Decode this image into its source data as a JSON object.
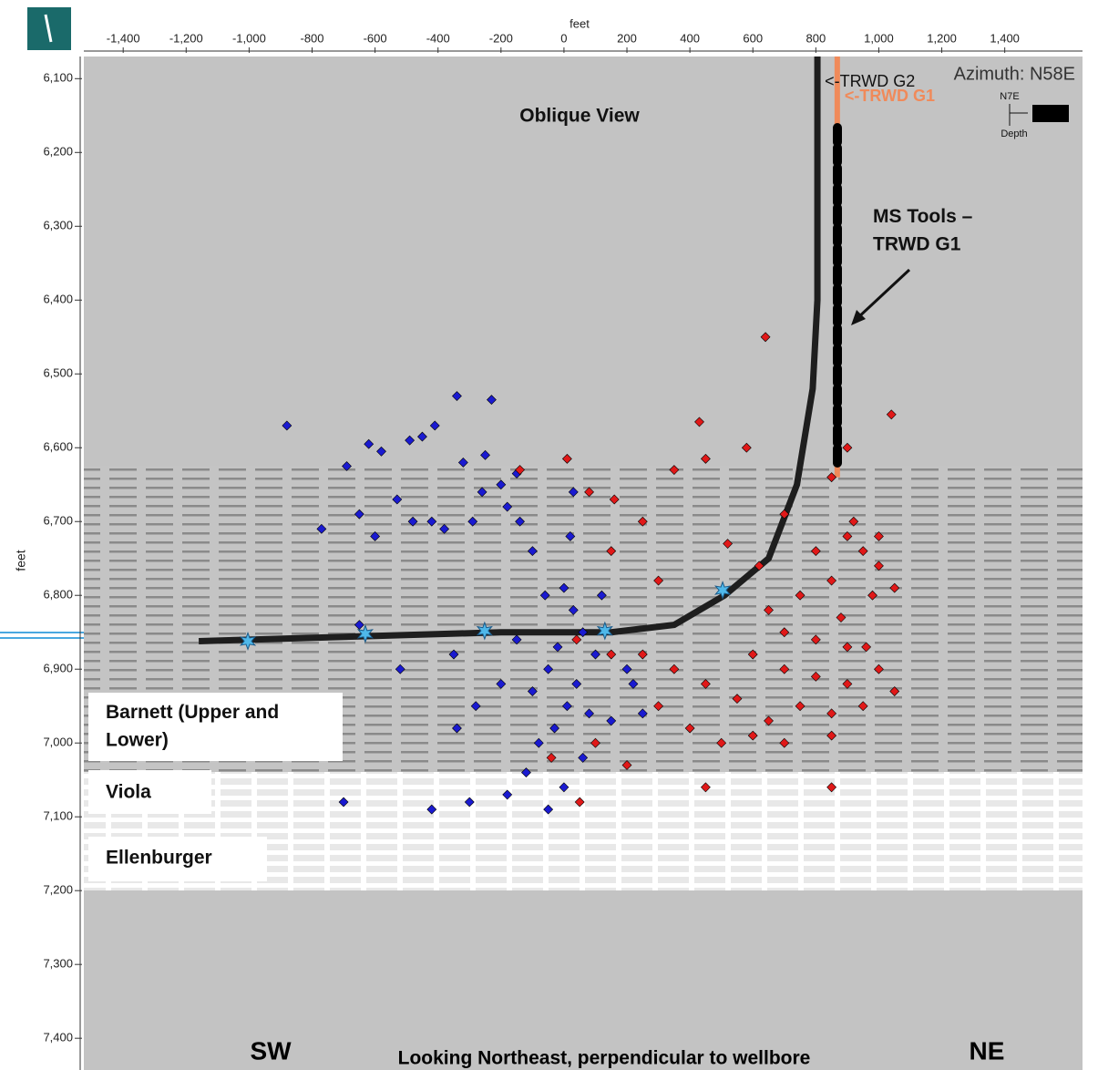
{
  "chart_data": {
    "type": "scatter",
    "title": "Oblique View",
    "subtitle": "Azimuth: N58E",
    "x_label": "feet",
    "y_label": "feet",
    "footer": "Looking  Northeast, perpendicular to wellbore",
    "left_label": "SW",
    "right_label": "NE",
    "compass": {
      "north": "N7E",
      "depth": "Depth"
    },
    "callout": "MS Tools –\nTRWD G1",
    "formations": [
      "Barnett (Upper and\nLower)",
      "Viola",
      "Ellenburger"
    ],
    "xlim": [
      -1525,
      1647
    ],
    "ylim": [
      6070,
      7443
    ],
    "y_inverted": true,
    "xticks": [
      {
        "value": -1400,
        "label": "-1,400"
      },
      {
        "value": -1200,
        "label": "-1,200"
      },
      {
        "value": -1000,
        "label": "-1,000"
      },
      -800,
      -600,
      -400,
      -200,
      0,
      200,
      400,
      600,
      800,
      {
        "value": 1000,
        "label": "1,000"
      },
      {
        "value": 1200,
        "label": "1,200"
      },
      {
        "value": 1400,
        "label": "1,400"
      }
    ],
    "yticks": [
      {
        "value": 6100,
        "label": "6,100"
      },
      {
        "value": 6200,
        "label": "6,200"
      },
      {
        "value": 6300,
        "label": "6,300"
      },
      {
        "value": 6400,
        "label": "6,400"
      },
      {
        "value": 6500,
        "label": "6,500"
      },
      {
        "value": 6600,
        "label": "6,600"
      },
      {
        "value": 6700,
        "label": "6,700"
      },
      {
        "value": 6800,
        "label": "6,800"
      },
      {
        "value": 6900,
        "label": "6,900"
      },
      {
        "value": 7000,
        "label": "7,000"
      },
      {
        "value": 7100,
        "label": "7,100"
      },
      {
        "value": 7200,
        "label": "7,200"
      },
      {
        "value": 7300,
        "label": "7,300"
      },
      {
        "value": 7400,
        "label": "7,400"
      }
    ],
    "series": [
      {
        "color": "#1a1ad0",
        "x": [
          -880,
          -690,
          -580,
          -620,
          -450,
          -490,
          -340,
          -230,
          -320,
          -150,
          -200,
          -250,
          -180,
          -290,
          -420,
          -530,
          -650,
          -770,
          -600,
          -480,
          -380,
          -140,
          -100,
          20,
          0,
          -60,
          30,
          60,
          -20,
          100,
          -50,
          40,
          -100,
          10,
          80,
          -30,
          150,
          -80,
          60,
          -120,
          0,
          -180,
          -300,
          -50,
          -420,
          -700,
          -350,
          -520,
          -650,
          -280,
          -200,
          200,
          250,
          -340,
          -150,
          120,
          220,
          30,
          -260,
          -410
        ],
        "y": [
          6570,
          6625,
          6605,
          6595,
          6585,
          6590,
          6530,
          6535,
          6620,
          6635,
          6650,
          6610,
          6680,
          6700,
          6700,
          6670,
          6690,
          6710,
          6720,
          6700,
          6710,
          6700,
          6740,
          6720,
          6790,
          6800,
          6820,
          6850,
          6870,
          6880,
          6900,
          6920,
          6930,
          6950,
          6960,
          6980,
          6970,
          7000,
          7020,
          7040,
          7060,
          7070,
          7080,
          7090,
          7090,
          7080,
          6880,
          6900,
          6840,
          6950,
          6920,
          6900,
          6960,
          6980,
          6860,
          6800,
          6920,
          6660,
          6660,
          6570
        ]
      },
      {
        "color": "#e01818",
        "x": [
          640,
          1040,
          430,
          580,
          900,
          450,
          10,
          -140,
          350,
          700,
          250,
          160,
          80,
          520,
          620,
          800,
          900,
          950,
          1000,
          1050,
          980,
          850,
          750,
          650,
          700,
          800,
          900,
          600,
          700,
          800,
          900,
          1000,
          1050,
          950,
          850,
          750,
          650,
          550,
          450,
          350,
          250,
          150,
          300,
          400,
          500,
          700,
          850,
          100,
          50,
          -40,
          450,
          850,
          200,
          600,
          960,
          880,
          300,
          150,
          40,
          850,
          920,
          1000
        ],
        "y": [
          6450,
          6555,
          6565,
          6600,
          6600,
          6615,
          6615,
          6630,
          6630,
          6690,
          6700,
          6670,
          6660,
          6730,
          6760,
          6740,
          6720,
          6740,
          6760,
          6790,
          6800,
          6780,
          6800,
          6820,
          6850,
          6860,
          6870,
          6880,
          6900,
          6910,
          6920,
          6900,
          6930,
          6950,
          6960,
          6950,
          6970,
          6940,
          6920,
          6900,
          6880,
          6880,
          6950,
          6980,
          7000,
          7000,
          6990,
          7000,
          7080,
          7020,
          7060,
          7060,
          7030,
          6990,
          6870,
          6830,
          6780,
          6740,
          6860,
          6640,
          6700,
          6720
        ]
      }
    ],
    "wells": [
      {
        "label": "<-TRWD G2",
        "color": "#1e1e1e",
        "x": [
          805,
          805,
          790,
          740,
          650,
          510,
          350,
          150,
          -200,
          -600,
          -1000,
          -1160
        ],
        "y": [
          6070,
          6400,
          6520,
          6650,
          6750,
          6800,
          6840,
          6850,
          6850,
          6855,
          6860,
          6862
        ]
      },
      {
        "label": "<-TRWD G1",
        "color": "#f08a5a",
        "x": [
          868,
          868
        ],
        "y": [
          6070,
          6640
        ]
      }
    ],
    "stages": {
      "color": "#4fb8ea",
      "x": [
        -1004,
        -631,
        -252,
        130,
        504
      ],
      "y": [
        6862,
        6852,
        6848,
        6848,
        6793
      ]
    }
  }
}
